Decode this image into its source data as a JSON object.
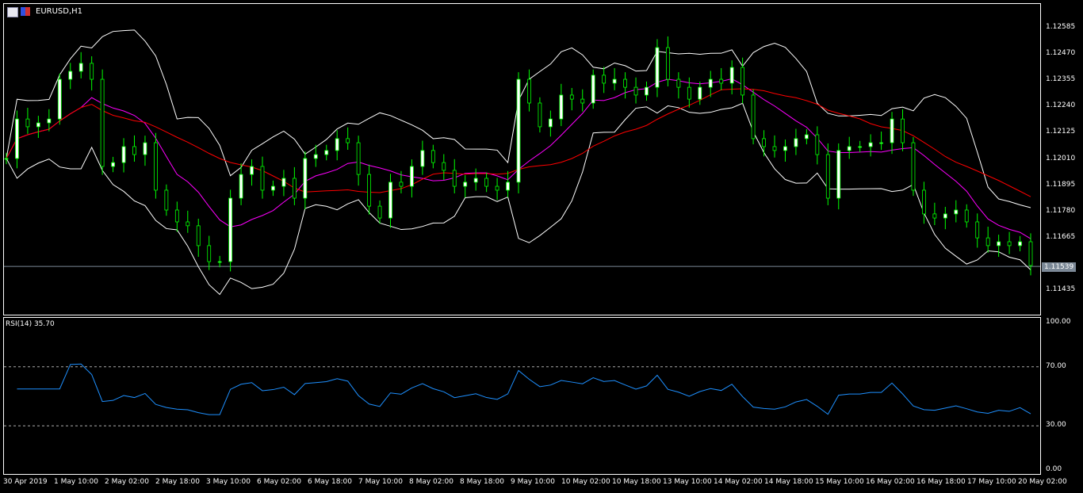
{
  "window": {
    "symbol_title": "EURUSD,H1"
  },
  "indicator": {
    "rsi_label": "RSI(14) 35.70"
  },
  "colors": {
    "bull_wick": "#00ff00",
    "bands": "#ffffff",
    "ma_fast": "#ff00ff",
    "ma_slow": "#ff0000",
    "rsi": "#1e90ff",
    "current_line": "#7b8896"
  },
  "price_axis": {
    "labels": [
      "1.12585",
      "1.12470",
      "1.12355",
      "1.12240",
      "1.12125",
      "1.12010",
      "1.11895",
      "1.11780",
      "1.11665",
      "1.11435"
    ],
    "current_price": "1.11539"
  },
  "rsi_axis": {
    "labels": [
      "100.00",
      "70.00",
      "30.00",
      "0.00"
    ],
    "levels": [
      70,
      30
    ]
  },
  "time_axis": {
    "labels": [
      "30 Apr 2019",
      "1 May 10:00",
      "2 May 02:00",
      "2 May 18:00",
      "3 May 10:00",
      "6 May 02:00",
      "6 May 18:00",
      "7 May 10:00",
      "8 May 02:00",
      "8 May 18:00",
      "9 May 10:00",
      "10 May 02:00",
      "10 May 18:00",
      "13 May 10:00",
      "14 May 02:00",
      "14 May 18:00",
      "15 May 10:00",
      "16 May 02:00",
      "16 May 18:00",
      "17 May 10:00",
      "20 May 02:00"
    ]
  },
  "chart_data": {
    "type": "candlestick",
    "symbol": "EURUSD",
    "timeframe": "H1",
    "ylim": [
      1.1138,
      1.1264
    ],
    "closes": [
      1.12012,
      1.12185,
      1.12151,
      1.12168,
      1.12185,
      1.12359,
      1.12394,
      1.12429,
      1.12359,
      1.11977,
      1.11994,
      1.12064,
      1.12029,
      1.12081,
      1.11873,
      1.11786,
      1.11734,
      1.11717,
      1.1163,
      1.1156,
      1.1156,
      1.11838,
      1.11942,
      1.11977,
      1.11873,
      1.1189,
      1.11925,
      1.11838,
      1.12012,
      1.12029,
      1.12047,
      1.12099,
      1.12081,
      1.11942,
      1.11803,
      1.11751,
      1.11908,
      1.1189,
      1.11977,
      1.12047,
      1.11994,
      1.1196,
      1.1189,
      1.11908,
      1.11925,
      1.1189,
      1.11873,
      1.11908,
      1.12359,
      1.12255,
      1.12151,
      1.12185,
      1.1229,
      1.12272,
      1.12255,
      1.12377,
      1.12342,
      1.12359,
      1.12324,
      1.1229,
      1.12324,
      1.12498,
      1.12359,
      1.12324,
      1.12272,
      1.12324,
      1.12359,
      1.12342,
      1.12411,
      1.1229,
      1.12099,
      1.12064,
      1.12047,
      1.12064,
      1.12099,
      1.12116,
      1.12029,
      1.11838,
      1.12047,
      1.12064,
      1.12064,
      1.12081,
      1.12081,
      1.12185,
      1.12081,
      1.11873,
      1.11769,
      1.11751,
      1.11769,
      1.11786,
      1.11734,
      1.11664,
      1.1163,
      1.11647,
      1.1163,
      1.11647,
      1.11543
    ]
  }
}
